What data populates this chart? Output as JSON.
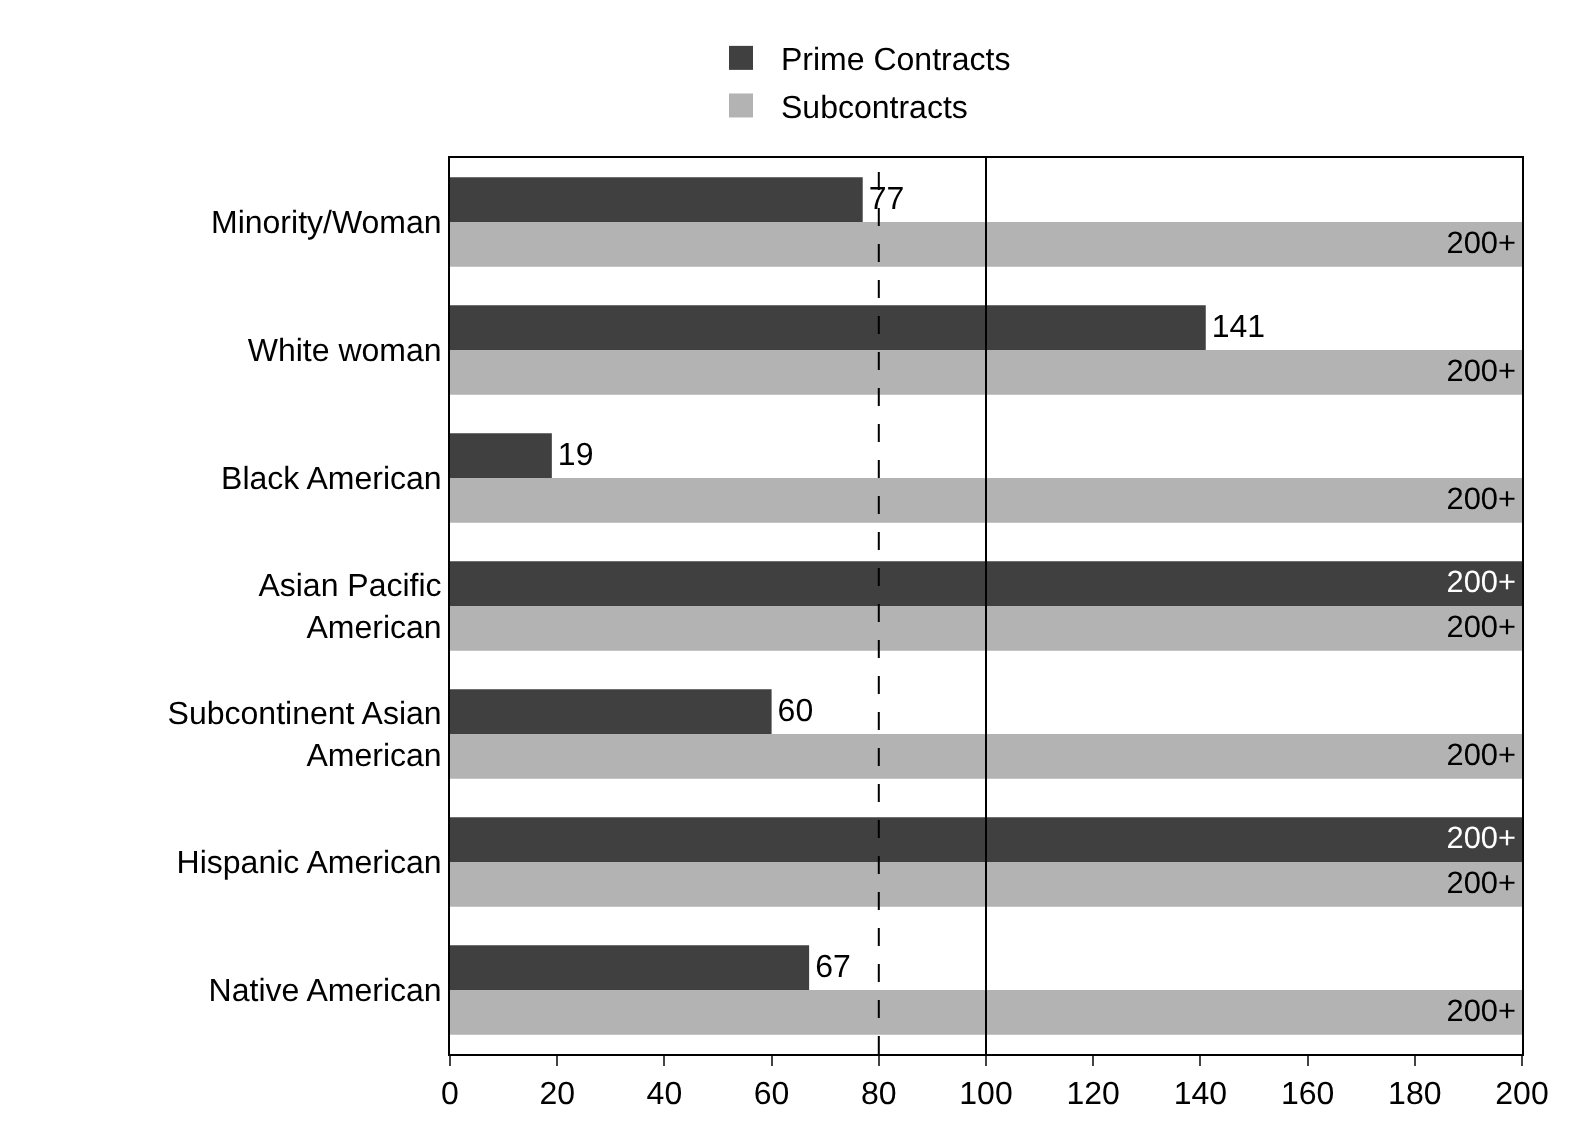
{
  "chart_data": {
    "type": "bar",
    "orientation": "horizontal",
    "categories": [
      "Minority/Woman",
      "White woman",
      "Black American",
      "Asian Pacific American",
      "Subcontinent Asian American",
      "Hispanic American",
      "Native American"
    ],
    "series": [
      {
        "name": "Prime Contracts",
        "color": "#404040",
        "values": [
          77,
          141,
          19,
          200,
          60,
          200,
          67
        ],
        "value_labels": [
          "77",
          "141",
          "19",
          "200+",
          "60",
          "200+",
          "67"
        ]
      },
      {
        "name": "Subcontracts",
        "color": "#b3b3b3",
        "values": [
          200,
          200,
          200,
          200,
          200,
          200,
          200
        ],
        "value_labels": [
          "200+",
          "200+",
          "200+",
          "200+",
          "200+",
          "200+",
          "200+"
        ]
      }
    ],
    "xlim": [
      0,
      200
    ],
    "xticks": [
      0,
      20,
      40,
      60,
      80,
      100,
      120,
      140,
      160,
      180,
      200
    ],
    "ref_lines": [
      {
        "axis": "x",
        "value": 80,
        "line_style": "dashed",
        "color": "#000000"
      },
      {
        "axis": "x",
        "value": 100,
        "line_style": "solid",
        "color": "#000000"
      }
    ],
    "grid": false,
    "legend": "top"
  }
}
